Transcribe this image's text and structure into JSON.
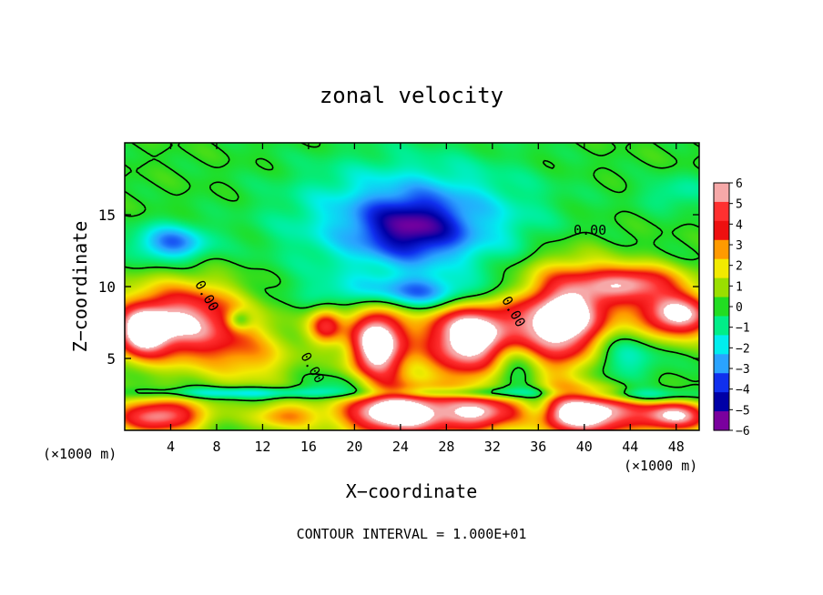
{
  "chart_data": {
    "type": "heatmap",
    "title": "zonal velocity",
    "xlabel": "X−coordinate",
    "ylabel": "Z−coordinate",
    "x_unit_left": "(×1000 m)",
    "x_unit_right": "(×1000 m)",
    "footer": "CONTOUR INTERVAL = 1.000E+01",
    "xlim": [
      0,
      50
    ],
    "ylim": [
      0,
      20
    ],
    "x_ticks": [
      4,
      8,
      12,
      16,
      20,
      24,
      28,
      32,
      36,
      40,
      44,
      48
    ],
    "y_ticks": [
      5,
      10,
      15
    ],
    "contour_labels": [
      {
        "text": "0.00",
        "x": 40.5,
        "y": 13.6
      },
      {
        "text": "0.00",
        "x": 6.8,
        "y": 9.2
      },
      {
        "text": "0.00",
        "x": 16.0,
        "y": 4.2
      },
      {
        "text": "0.00",
        "x": 33.5,
        "y": 8.1
      }
    ],
    "colorbar": {
      "levels": [
        6,
        5,
        4,
        3,
        2,
        1,
        0,
        -1,
        -2,
        -3,
        -4,
        -5,
        -6
      ],
      "labels": [
        "6",
        "5",
        "4",
        "3",
        "2",
        "1",
        "0",
        "−1",
        "−2",
        "−3",
        "−4",
        "−5",
        "−6"
      ],
      "colors": [
        "#f6a8a8",
        "#ff3030",
        "#ee1010",
        "#ff9a00",
        "#f2ea00",
        "#9adf00",
        "#22dd22",
        "#00ee88",
        "#00eeee",
        "#2aa3ff",
        "#1030ee",
        "#0000a6",
        "#7a009e"
      ]
    },
    "field_blobs": [
      {
        "x": 25,
        "y": 14.5,
        "rx": 10,
        "ry": 4,
        "v": -3.5
      },
      {
        "x": 25,
        "y": 14.0,
        "rx": 4,
        "ry": 2,
        "v": -2.5
      },
      {
        "x": 4,
        "y": 13.0,
        "rx": 3.2,
        "ry": 1.3,
        "v": -3.5
      },
      {
        "x": 48,
        "y": 16.5,
        "rx": 3,
        "ry": 1.2,
        "v": -1.3
      },
      {
        "x": 5,
        "y": 7.5,
        "rx": 5.5,
        "ry": 2.6,
        "v": 6.5
      },
      {
        "x": 1.5,
        "y": 6.8,
        "rx": 2.2,
        "ry": 1.6,
        "v": 5
      },
      {
        "x": 44.5,
        "y": 10.3,
        "rx": 4,
        "ry": 1.2,
        "v": 5
      },
      {
        "x": 48,
        "y": 8,
        "rx": 3.5,
        "ry": 1.6,
        "v": 7
      },
      {
        "x": 30,
        "y": 6.5,
        "rx": 4,
        "ry": 2.8,
        "v": 8
      },
      {
        "x": 38.5,
        "y": 7.5,
        "rx": 4.5,
        "ry": 3.5,
        "v": 9
      },
      {
        "x": 22,
        "y": 6.0,
        "rx": 2.5,
        "ry": 2.8,
        "v": 8
      },
      {
        "x": 17.5,
        "y": 7.3,
        "rx": 1.5,
        "ry": 1.3,
        "v": 4.5
      },
      {
        "x": 24,
        "y": 1.2,
        "rx": 5,
        "ry": 1.7,
        "v": 8
      },
      {
        "x": 40,
        "y": 1.2,
        "rx": 5,
        "ry": 1.6,
        "v": 8
      },
      {
        "x": 31,
        "y": 1.2,
        "rx": 3,
        "ry": 1.3,
        "v": 5
      },
      {
        "x": 3,
        "y": 1.0,
        "rx": 4,
        "ry": 1.2,
        "v": 6
      },
      {
        "x": 48,
        "y": 1.0,
        "rx": 3,
        "ry": 1.1,
        "v": 6
      },
      {
        "x": 14,
        "y": 1.0,
        "rx": 3,
        "ry": 1.0,
        "v": 3
      },
      {
        "x": 11,
        "y": 5.0,
        "rx": 4,
        "ry": 2.0,
        "v": 2.2
      },
      {
        "x": 26,
        "y": 9.5,
        "rx": 8,
        "ry": 1.2,
        "v": -3.5
      },
      {
        "x": 42,
        "y": 5.5,
        "rx": 4,
        "ry": 2.5,
        "v": -3.5
      },
      {
        "x": 34,
        "y": 4.5,
        "rx": 2.5,
        "ry": 2.0,
        "v": -3
      },
      {
        "x": 20,
        "y": 3.0,
        "rx": 3,
        "ry": 1.0,
        "v": -2
      },
      {
        "x": 10,
        "y": 2.6,
        "rx": 9,
        "ry": 0.4,
        "v": -2.5
      },
      {
        "x": 30,
        "y": 2.6,
        "rx": 8,
        "ry": 0.4,
        "v": -2.5
      },
      {
        "x": 45,
        "y": 2.4,
        "rx": 5,
        "ry": 0.5,
        "v": -2.5
      },
      {
        "x": 10,
        "y": 7.7,
        "rx": 1.0,
        "ry": 0.7,
        "v": -2.5
      },
      {
        "x": 36,
        "y": 1.5,
        "rx": 1.5,
        "ry": 1.2,
        "v": -2.5
      }
    ]
  }
}
